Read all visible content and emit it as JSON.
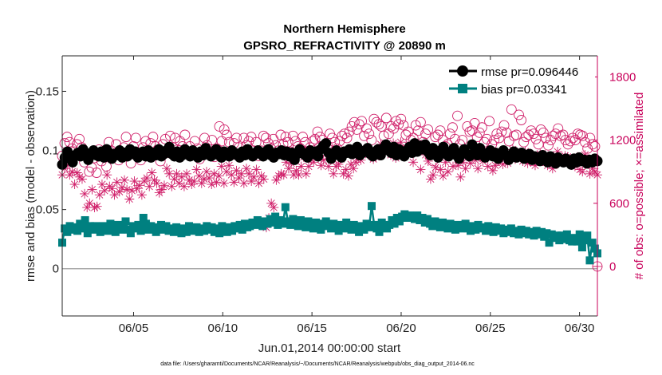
{
  "chart_data": {
    "type": "line",
    "title": "Northern Hemisphere",
    "subtitle": "GPSRO_REFRACTIVITY @ 20890 m",
    "xlabel": "Jun.01,2014 00:00:00 start",
    "ylabel": "rmse and bias (model - observation)",
    "y2label": "# of obs: o=possible; ×=assimilated",
    "footnote": "data file: /Users/gharamti/Documents/NCAR/Reanalysis/~/Documents/NCAR/Reanalysis/webpub/obs_diag_output_2014-06.nc",
    "xlim": [
      1,
      31
    ],
    "ylim": [
      -0.04,
      0.18
    ],
    "y2lim": [
      -470,
      2000
    ],
    "xticks": [
      5,
      10,
      15,
      20,
      25,
      30
    ],
    "xticklabels": [
      "06/05",
      "06/10",
      "06/15",
      "06/20",
      "06/25",
      "06/30"
    ],
    "yticks": [
      0,
      0.05,
      0.1,
      0.15
    ],
    "yticklabels": [
      "0",
      "0.05",
      "0.1",
      "0.15"
    ],
    "y2ticks": [
      0,
      600,
      1200,
      1800
    ],
    "y2ticklabels": [
      "0",
      "600",
      "1200",
      "1800"
    ],
    "zero_line": 0,
    "legend": {
      "position": "top-right",
      "entries": [
        "rmse pr=0.096446",
        "bias pr=0.03341"
      ]
    },
    "colors": {
      "rmse": "#000000",
      "bias": "#008080",
      "obs": "#d0206a",
      "zero": "#aaaaaa"
    },
    "series": [
      {
        "name": "rmse",
        "axis": "left",
        "marker": "circle",
        "values": [
          0.088,
          0.094,
          0.099,
          0.093,
          0.09,
          0.096,
          0.098,
          0.095,
          0.101,
          0.098,
          0.092,
          0.097,
          0.1,
          0.096,
          0.095,
          0.099,
          0.094,
          0.101,
          0.098,
          0.093,
          0.097,
          0.096,
          0.1,
          0.094,
          0.098,
          0.095,
          0.101,
          0.097,
          0.099,
          0.094,
          0.096,
          0.099,
          0.095,
          0.1,
          0.094,
          0.098,
          0.096,
          0.101,
          0.095,
          0.097,
          0.1,
          0.103,
          0.097,
          0.095,
          0.099,
          0.094,
          0.096,
          0.101,
          0.098,
          0.095,
          0.1,
          0.097,
          0.094,
          0.099,
          0.096,
          0.102,
          0.098,
          0.095,
          0.097,
          0.101,
          0.096,
          0.094,
          0.099,
          0.097,
          0.095,
          0.1,
          0.098,
          0.096,
          0.094,
          0.099,
          0.096,
          0.101,
          0.097,
          0.095,
          0.098,
          0.1,
          0.097,
          0.095,
          0.099,
          0.101,
          0.096,
          0.094,
          0.098,
          0.097,
          0.1,
          0.096,
          0.099,
          0.095,
          0.098,
          0.092,
          0.097,
          0.101,
          0.098,
          0.096,
          0.094,
          0.1,
          0.097,
          0.099,
          0.095,
          0.101,
          0.104,
          0.106,
          0.098,
          0.093,
          0.097,
          0.1,
          0.096,
          0.094,
          0.099,
          0.098,
          0.101,
          0.097,
          0.099,
          0.103,
          0.096,
          0.098,
          0.1,
          0.102,
          0.097,
          0.095,
          0.099,
          0.101,
          0.096,
          0.102,
          0.105,
          0.1,
          0.098,
          0.103,
          0.096,
          0.101,
          0.097,
          0.095,
          0.1,
          0.103,
          0.098,
          0.106,
          0.099,
          0.104,
          0.101,
          0.105,
          0.099,
          0.096,
          0.102,
          0.098,
          0.094,
          0.1,
          0.103,
          0.097,
          0.095,
          0.099,
          0.102,
          0.096,
          0.093,
          0.098,
          0.101,
          0.097,
          0.095,
          0.105,
          0.099,
          0.096,
          0.102,
          0.098,
          0.094,
          0.097,
          0.1,
          0.095,
          0.098,
          0.093,
          0.097,
          0.1,
          0.096,
          0.092,
          0.096,
          0.099,
          0.094,
          0.096,
          0.098,
          0.093,
          0.095,
          0.097,
          0.092,
          0.095,
          0.094,
          0.091,
          0.096,
          0.093,
          0.09,
          0.095,
          0.092,
          0.089,
          0.094,
          0.091,
          0.09,
          0.093,
          0.091,
          0.088,
          0.093,
          0.09,
          0.094,
          0.091,
          0.092,
          0.089,
          0.092,
          0.09,
          0.093,
          0.091
        ]
      },
      {
        "name": "bias",
        "axis": "left",
        "marker": "square",
        "values": [
          0.022,
          0.034,
          0.031,
          0.036,
          0.033,
          0.035,
          0.032,
          0.038,
          0.034,
          0.041,
          0.03,
          0.036,
          0.033,
          0.036,
          0.034,
          0.031,
          0.036,
          0.033,
          0.032,
          0.038,
          0.035,
          0.031,
          0.037,
          0.033,
          0.036,
          0.04,
          0.033,
          0.03,
          0.036,
          0.034,
          0.037,
          0.032,
          0.043,
          0.038,
          0.033,
          0.036,
          0.034,
          0.031,
          0.035,
          0.037,
          0.033,
          0.036,
          0.032,
          0.034,
          0.031,
          0.035,
          0.032,
          0.03,
          0.034,
          0.031,
          0.036,
          0.032,
          0.033,
          0.035,
          0.031,
          0.034,
          0.032,
          0.036,
          0.033,
          0.035,
          0.031,
          0.034,
          0.03,
          0.036,
          0.033,
          0.031,
          0.035,
          0.032,
          0.036,
          0.034,
          0.037,
          0.033,
          0.038,
          0.035,
          0.036,
          0.039,
          0.037,
          0.041,
          0.038,
          0.036,
          0.04,
          0.038,
          0.042,
          0.039,
          0.044,
          0.037,
          0.041,
          0.038,
          0.052,
          0.04,
          0.037,
          0.042,
          0.039,
          0.036,
          0.041,
          0.038,
          0.035,
          0.04,
          0.037,
          0.034,
          0.039,
          0.036,
          0.033,
          0.038,
          0.04,
          0.036,
          0.034,
          0.038,
          0.035,
          0.032,
          0.037,
          0.034,
          0.039,
          0.036,
          0.033,
          0.037,
          0.034,
          0.031,
          0.036,
          0.033,
          0.038,
          0.035,
          0.053,
          0.037,
          0.034,
          0.031,
          0.039,
          0.036,
          0.034,
          0.037,
          0.041,
          0.038,
          0.043,
          0.04,
          0.044,
          0.046,
          0.043,
          0.045,
          0.044,
          0.042,
          0.045,
          0.041,
          0.043,
          0.039,
          0.042,
          0.038,
          0.036,
          0.04,
          0.037,
          0.035,
          0.039,
          0.036,
          0.034,
          0.038,
          0.035,
          0.033,
          0.037,
          0.034,
          0.036,
          0.038,
          0.034,
          0.032,
          0.036,
          0.033,
          0.037,
          0.034,
          0.035,
          0.032,
          0.036,
          0.033,
          0.031,
          0.035,
          0.032,
          0.034,
          0.03,
          0.033,
          0.031,
          0.034,
          0.03,
          0.032,
          0.029,
          0.033,
          0.03,
          0.032,
          0.029,
          0.031,
          0.028,
          0.032,
          0.029,
          0.031,
          0.027,
          0.03,
          0.022,
          0.029,
          0.026,
          0.028,
          0.024,
          0.028,
          0.025,
          0.029,
          0.024,
          0.023,
          0.026,
          0.023,
          0.029,
          0.018,
          0.024,
          0.028,
          0.007,
          0.022,
          0.017,
          0.013
        ]
      },
      {
        "name": "possible",
        "axis": "right",
        "marker": "open-circle",
        "values": [
          1050,
          1170,
          1230,
          1180,
          1120,
          1090,
          1160,
          1210,
          1130,
          990,
          1060,
          900,
          940,
          1030,
          890,
          1110,
          1000,
          1040,
          950,
          1180,
          1100,
          1050,
          1160,
          1010,
          1090,
          1130,
          1230,
          1070,
          980,
          1140,
          1220,
          1080,
          1010,
          1130,
          1190,
          1050,
          1170,
          1230,
          1140,
          1080,
          1000,
          1160,
          1210,
          1080,
          1240,
          1130,
          1220,
          1110,
          1190,
          1140,
          1250,
          1070,
          1140,
          1060,
          1190,
          1120,
          1020,
          1090,
          1220,
          1150,
          1090,
          1200,
          1040,
          1120,
          1330,
          1190,
          1300,
          1250,
          1180,
          1060,
          1170,
          1220,
          1130,
          1060,
          1220,
          1150,
          1190,
          1230,
          1100,
          1180,
          1050,
          1100,
          1240,
          1220,
          1170,
          1120,
          1210,
          1150,
          1100,
          1250,
          1160,
          1230,
          1180,
          1090,
          1240,
          1190,
          1140,
          1120,
          1230,
          1180,
          1050,
          1130,
          1190,
          1210,
          1280,
          1230,
          1200,
          1060,
          1150,
          1260,
          1220,
          1180,
          1120,
          1190,
          1240,
          1260,
          1220,
          1280,
          1330,
          1370,
          1300,
          1350,
          1380,
          1240,
          1310,
          1260,
          1200,
          1400,
          1370,
          1350,
          1330,
          1240,
          1410,
          1260,
          1330,
          1310,
          1380,
          1350,
          1400,
          1340,
          1250,
          1280,
          1200,
          1220,
          1340,
          1290,
          1370,
          1180,
          1260,
          1300,
          1090,
          1000,
          1230,
          1250,
          1290,
          1200,
          1140,
          1160,
          1260,
          1320,
          1210,
          1430,
          1160,
          1200,
          1090,
          1330,
          1280,
          1290,
          1360,
          1230,
          1270,
          1320,
          1180,
          1210,
          1380,
          1160,
          1200,
          1260,
          1220,
          1280,
          1340,
          1270,
          1190,
          1490,
          1240,
          1250,
          1440,
          1390,
          1180,
          1230,
          1250,
          1290,
          1260,
          1210,
          1160,
          1300,
          1270,
          1220,
          1150,
          1200,
          1240,
          1260,
          1310,
          1240,
          1250,
          1200,
          1160,
          1190,
          1220,
          1200,
          1260,
          1250,
          1240,
          1180,
          1120,
          1220,
          1160,
          1140,
          0
        ]
      },
      {
        "name": "assimilated",
        "axis": "right",
        "marker": "asterisk",
        "values": [
          870,
          930,
          960,
          870,
          900,
          780,
          890,
          850,
          830,
          690,
          560,
          600,
          730,
          560,
          570,
          680,
          780,
          720,
          870,
          760,
          740,
          680,
          800,
          710,
          750,
          820,
          730,
          640,
          720,
          810,
          740,
          770,
          680,
          810,
          840,
          760,
          890,
          820,
          790,
          700,
          730,
          770,
          930,
          880,
          760,
          830,
          880,
          790,
          850,
          760,
          880,
          820,
          780,
          810,
          920,
          860,
          790,
          830,
          900,
          840,
          780,
          880,
          800,
          860,
          950,
          790,
          900,
          960,
          870,
          800,
          910,
          840,
          880,
          790,
          930,
          880,
          810,
          850,
          920,
          790,
          860,
          830,
          370,
          460,
          600,
          560,
          820,
          860,
          880,
          870,
          990,
          930,
          980,
          870,
          910,
          870,
          950,
          1040,
          880,
          950,
          1020,
          990,
          1100,
          1040,
          960,
          1010,
          1080,
          950,
          1040,
          880,
          950,
          970,
          1020,
          880,
          920,
          860,
          970,
          930,
          990,
          1040,
          1010,
          1100,
          1090,
          1060,
          1080,
          1020,
          1040,
          1100,
          1160,
          1100,
          1130,
          1090,
          1060,
          1170,
          1030,
          1130,
          1180,
          1090,
          1120,
          1150,
          1080,
          990,
          1110,
          1170,
          920,
          1130,
          1060,
          1000,
          830,
          870,
          940,
          1030,
          920,
          860,
          990,
          900,
          1060,
          950,
          1080,
          960,
          850,
          990,
          930,
          1050,
          980,
          1100,
          1010,
          930,
          1040,
          1000,
          1080,
          950,
          1050,
          910,
          960,
          1000,
          1080,
          970,
          1030,
          980,
          1040,
          1110,
          1020,
          1080,
          1040,
          1000,
          1090,
          980,
          1040,
          1030,
          960,
          1020,
          1070,
          1000,
          1060,
          960,
          980,
          930,
          1010,
          1090,
          1030,
          990,
          1050,
          1040,
          980,
          1010,
          950,
          1040,
          920,
          900,
          1060,
          980,
          880,
          930,
          900,
          870
        ]
      }
    ]
  }
}
